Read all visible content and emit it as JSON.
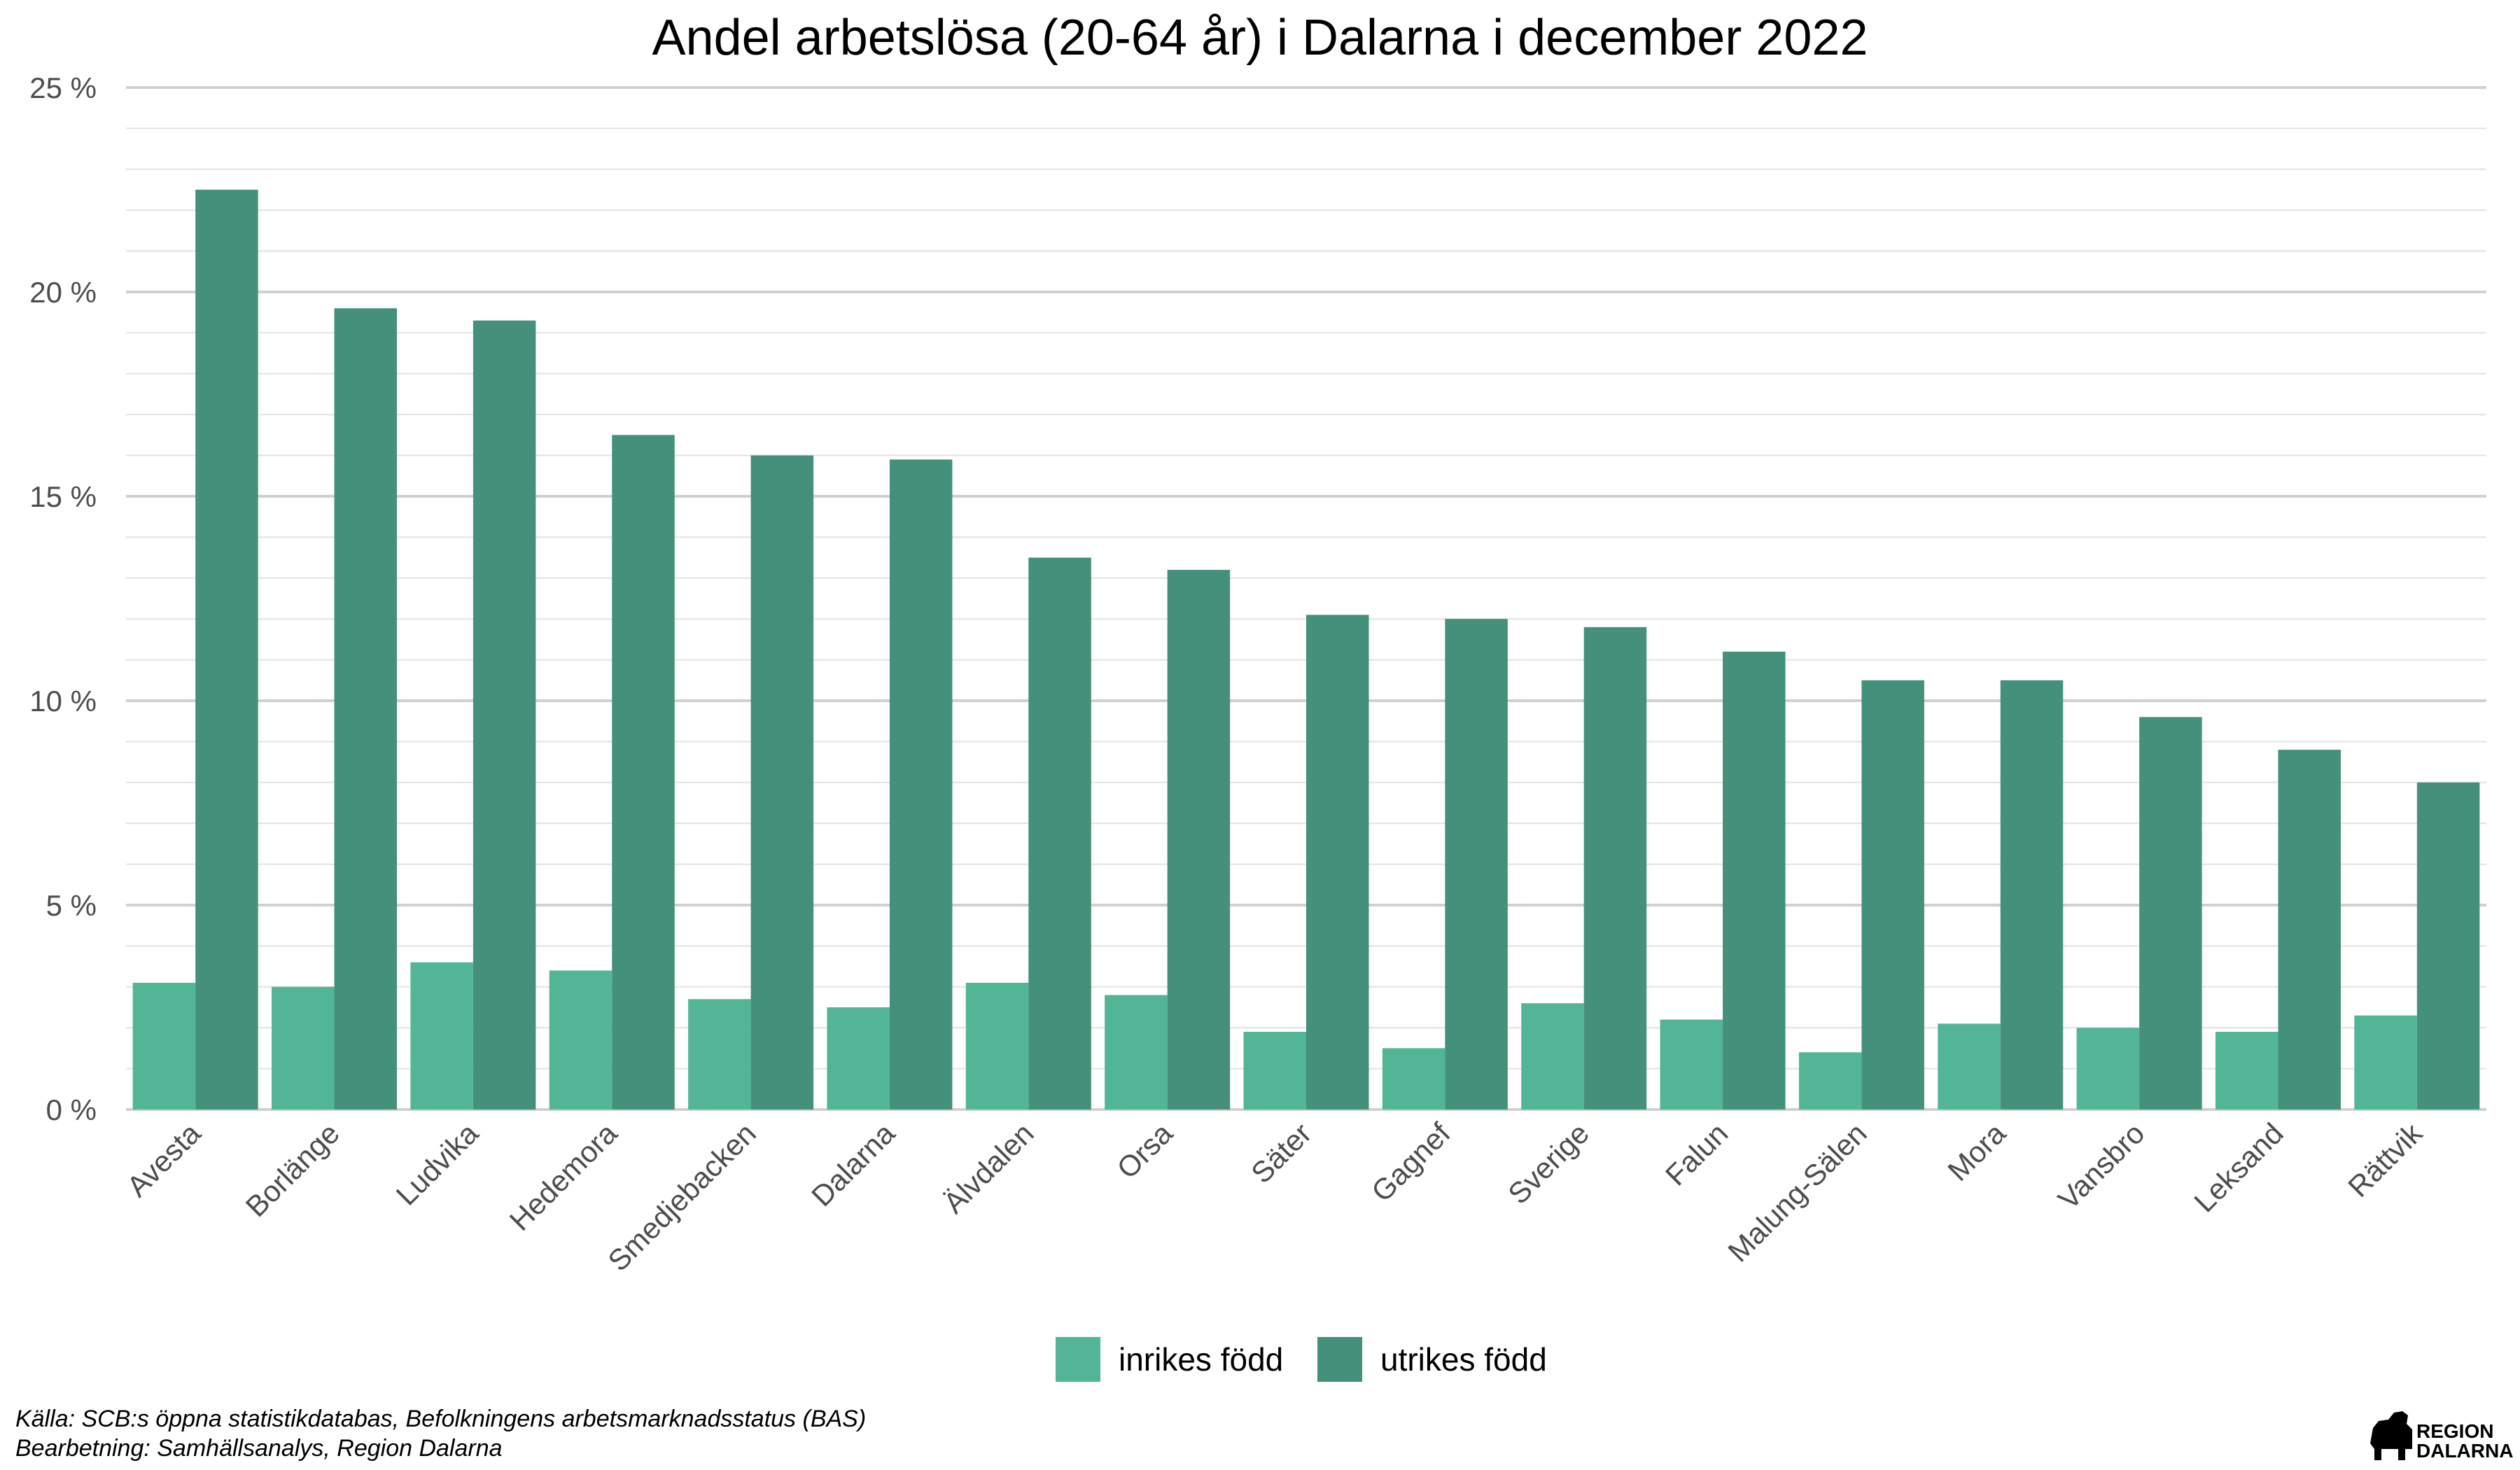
{
  "chart_data": {
    "type": "bar",
    "title": "Andel arbetslösa (20-64 år) i Dalarna i december 2022",
    "xlabel": "",
    "ylabel": "",
    "ylim": [
      0,
      25
    ],
    "y_ticks": [
      "0 %",
      "5 %",
      "10 %",
      "15 %",
      "20 %",
      "25 %"
    ],
    "grid": true,
    "legend_position": "bottom",
    "categories": [
      "Avesta",
      "Borlänge",
      "Ludvika",
      "Hedemora",
      "Smedjebacken",
      "Dalarna",
      "Älvdalen",
      "Orsa",
      "Säter",
      "Gagnef",
      "Sverige",
      "Falun",
      "Malung-Sälen",
      "Mora",
      "Vansbro",
      "Leksand",
      "Rättvik"
    ],
    "series": [
      {
        "name": "inrikes född",
        "color": "#52b696",
        "values": [
          3.1,
          3.0,
          3.6,
          3.4,
          2.7,
          2.5,
          3.1,
          2.8,
          1.9,
          1.5,
          2.6,
          2.2,
          1.4,
          2.1,
          2.0,
          1.9,
          2.3
        ]
      },
      {
        "name": "utrikes född",
        "color": "#44907a",
        "values": [
          22.5,
          19.6,
          19.3,
          16.5,
          16.0,
          15.9,
          13.5,
          13.2,
          12.1,
          12.0,
          11.8,
          11.2,
          10.5,
          10.5,
          9.6,
          8.8,
          8.0
        ]
      }
    ]
  },
  "caption": {
    "source": "Källa: SCB:s öppna statistikdatabas, Befolkningens arbetsmarknadsstatus (BAS)",
    "processing": "Bearbetning: Samhällsanalys, Region Dalarna"
  },
  "logo": {
    "line1": "REGION",
    "line2": "DALARNA",
    "icon": "dala-horse-icon"
  }
}
